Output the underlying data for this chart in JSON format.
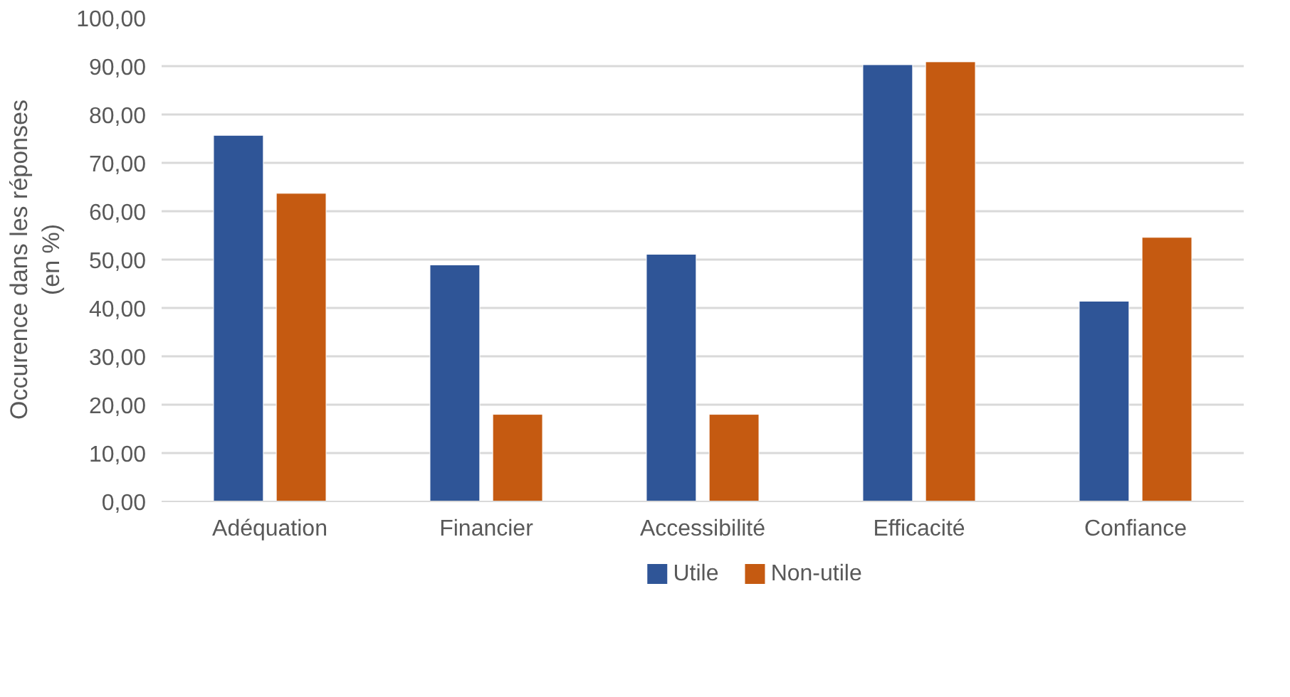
{
  "chart_data": {
    "type": "bar",
    "ylabel": "Occurence dans les réponses (en %)",
    "categories": [
      "Adéquation",
      "Financier",
      "Accessibilité",
      "Efficacité",
      "Confiance"
    ],
    "series": [
      {
        "name": "Utile",
        "color": "#2f5597",
        "values": [
          75.7,
          48.9,
          51.1,
          90.3,
          41.4
        ]
      },
      {
        "name": "Non-utile",
        "color": "#c55a11",
        "values": [
          63.7,
          18.0,
          18.0,
          90.9,
          54.6
        ]
      }
    ],
    "ylim": [
      0,
      100
    ],
    "yticks": [
      {
        "value": 0,
        "label": "0,00"
      },
      {
        "value": 10,
        "label": "10,00"
      },
      {
        "value": 20,
        "label": "20,00"
      },
      {
        "value": 30,
        "label": "30,00"
      },
      {
        "value": 40,
        "label": "40,00"
      },
      {
        "value": 50,
        "label": "50,00"
      },
      {
        "value": 60,
        "label": "60,00"
      },
      {
        "value": 70,
        "label": "70,00"
      },
      {
        "value": 80,
        "label": "80,00"
      },
      {
        "value": 90,
        "label": "90,00"
      },
      {
        "value": 100,
        "label": "100,00"
      }
    ],
    "grid": "y",
    "legend": "bottom"
  }
}
